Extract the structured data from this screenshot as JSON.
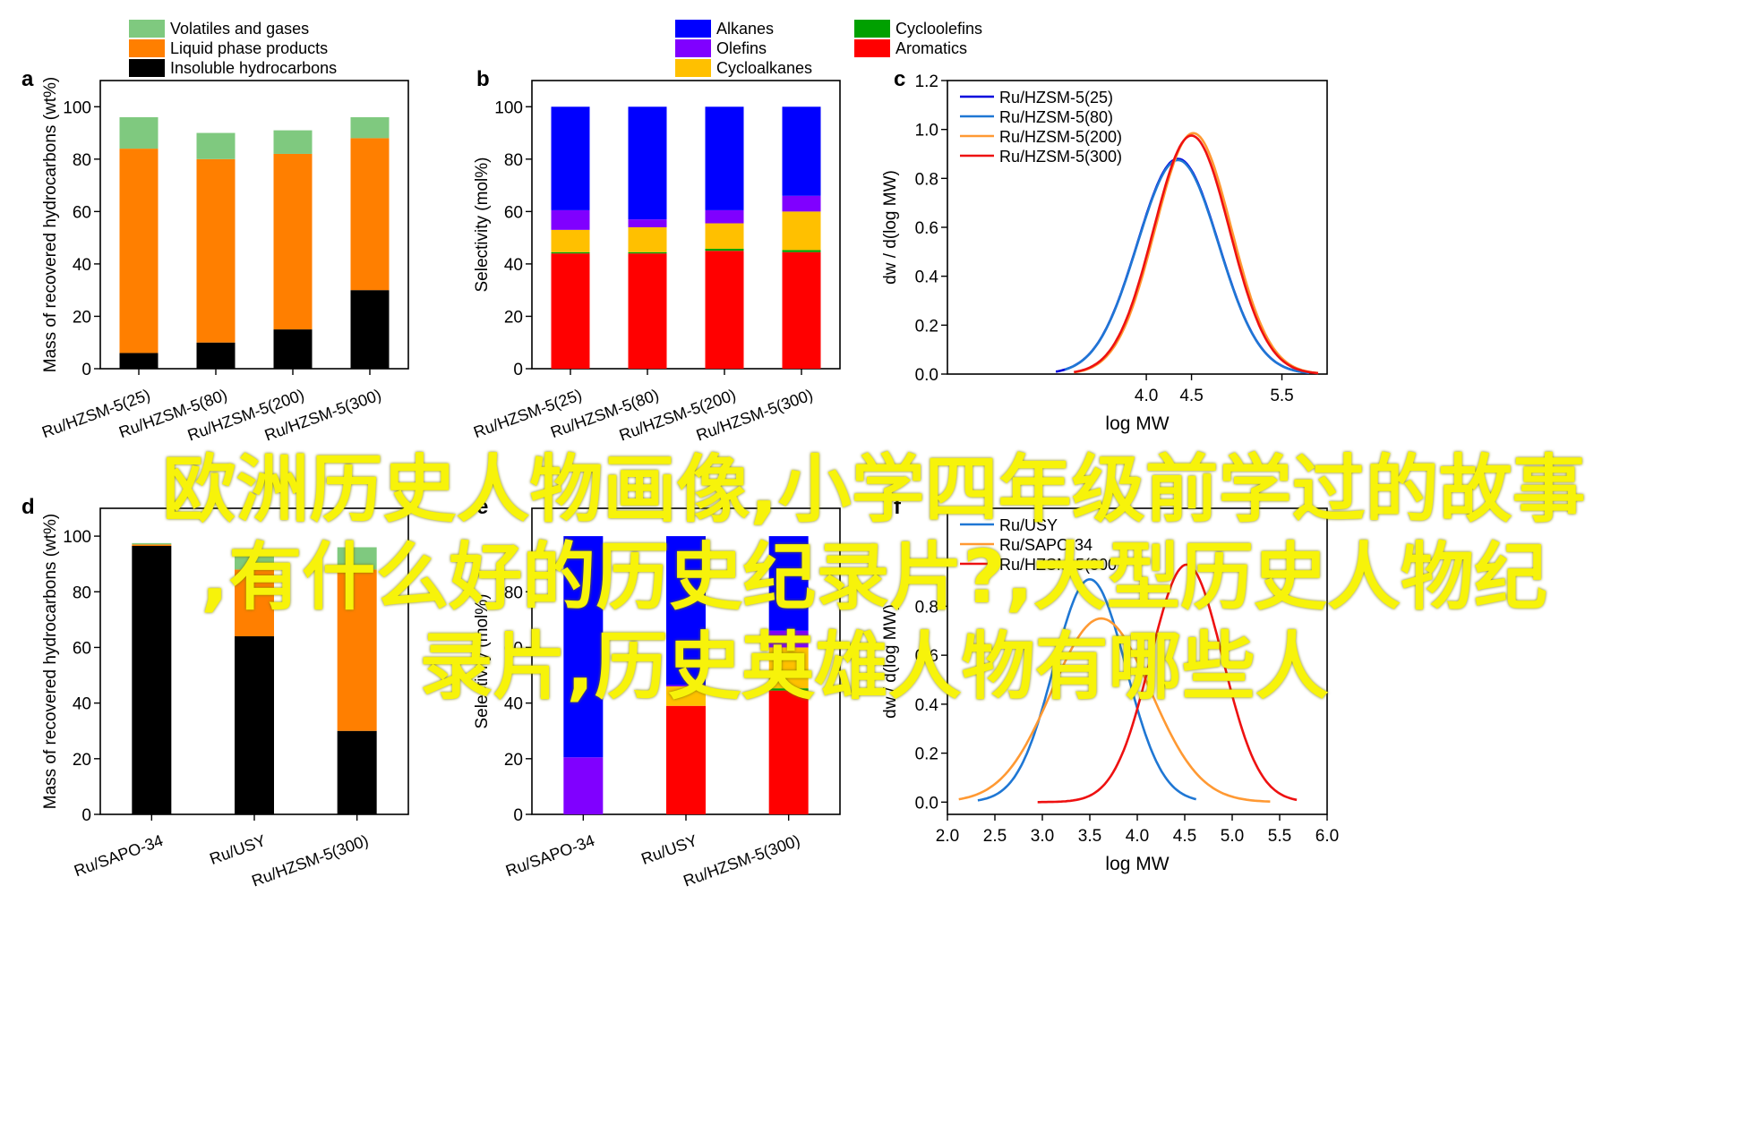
{
  "page": {
    "overlay_lines": [
      "欧洲历史人物画像,小学四年级前学过的故事",
      ",有什么好的历史纪录片?,大型历史人物纪",
      "录片,历史英雄人物有哪些人"
    ],
    "overlay_color": "#f7f30a"
  },
  "chart_data": [
    {
      "panel": "a",
      "type": "bar",
      "stacked": true,
      "categories": [
        "Ru/HZSM-5(25)",
        "Ru/HZSM-5(80)",
        "Ru/HZSM-5(200)",
        "Ru/HZSM-5(300)"
      ],
      "series": [
        {
          "name": "Insoluble hydrocarbons",
          "color": "#000000",
          "values": [
            6,
            10,
            15,
            30
          ]
        },
        {
          "name": "Liquid phase products",
          "color": "#ff7f00",
          "values": [
            78,
            70,
            67,
            58
          ]
        },
        {
          "name": "Volatiles and gases",
          "color": "#7fc97f",
          "values": [
            12,
            10,
            9,
            8
          ]
        }
      ],
      "ylabel": "Mass of recovered hydrocarbons (wt%)",
      "ylim": [
        0,
        110
      ],
      "yticks": [
        0,
        20,
        40,
        60,
        80,
        100
      ],
      "legend": "top-left, outside"
    },
    {
      "panel": "b",
      "type": "bar",
      "stacked": true,
      "categories": [
        "Ru/HZSM-5(25)",
        "Ru/HZSM-5(80)",
        "Ru/HZSM-5(200)",
        "Ru/HZSM-5(300)"
      ],
      "series": [
        {
          "name": "Aromatics",
          "color": "#ff0000",
          "values": [
            44,
            44,
            45,
            44.5
          ]
        },
        {
          "name": "Cycloolefins",
          "color": "#00a000",
          "values": [
            0.5,
            0.5,
            0.8,
            0.8
          ]
        },
        {
          "name": "Cycloalkanes",
          "color": "#ffc000",
          "values": [
            8.5,
            9.5,
            9.7,
            14.7
          ]
        },
        {
          "name": "Olefins",
          "color": "#8000ff",
          "values": [
            7.5,
            3,
            5,
            6
          ]
        },
        {
          "name": "Alkanes",
          "color": "#0000ff",
          "values": [
            39.5,
            43,
            39.5,
            34
          ]
        }
      ],
      "ylabel": "Selectivity (mol%)",
      "ylim": [
        0,
        110
      ],
      "yticks": [
        0,
        20,
        40,
        60,
        80,
        100
      ],
      "legend": "top, outside, two columns"
    },
    {
      "panel": "c",
      "type": "line",
      "xlabel": "log MW",
      "ylabel": "dw / d(log MW)",
      "xlim": [
        1.8,
        6.0
      ],
      "ylim": [
        0,
        1.2
      ],
      "yticks": [
        0.0,
        0.2,
        0.4,
        0.6,
        0.8,
        1.0,
        1.2
      ],
      "xticks_visible": [
        5.5
      ],
      "xtick_labels_visible": [
        "4.0",
        "4.5",
        "5.5"
      ],
      "series": [
        {
          "name": "Ru/HZSM-5(25)",
          "color": "#0000dd",
          "peak_x": 4.35,
          "peak_y": 0.88,
          "sigma": 0.45,
          "x_range": [
            3.0,
            5.8
          ]
        },
        {
          "name": "Ru/HZSM-5(80)",
          "color": "#1f77d4",
          "peak_x": 4.35,
          "peak_y": 0.875,
          "sigma": 0.45,
          "x_range": [
            3.1,
            5.8
          ]
        },
        {
          "name": "Ru/HZSM-5(200)",
          "color": "#ff9933",
          "peak_x": 4.52,
          "peak_y": 0.985,
          "sigma": 0.42,
          "x_range": [
            3.2,
            5.9
          ]
        },
        {
          "name": "Ru/HZSM-5(300)",
          "color": "#ee1111",
          "peak_x": 4.5,
          "peak_y": 0.975,
          "sigma": 0.42,
          "x_range": [
            3.2,
            5.9
          ]
        }
      ],
      "legend": "top-left"
    },
    {
      "panel": "d",
      "type": "bar",
      "stacked": true,
      "categories": [
        "Ru/SAPO-34",
        "Ru/USY",
        "Ru/HZSM-5(300)"
      ],
      "series": [
        {
          "name": "Insoluble hydrocarbons",
          "color": "#000000",
          "values": [
            96.5,
            64,
            30
          ]
        },
        {
          "name": "Liquid phase products",
          "color": "#ff7f00",
          "values": [
            0.5,
            24,
            58
          ]
        },
        {
          "name": "Volatiles and gases",
          "color": "#7fc97f",
          "values": [
            0.5,
            6,
            8
          ]
        }
      ],
      "ylabel": "Mass of recovered hydrocarbons (wt%)",
      "ylim": [
        0,
        110
      ],
      "yticks": [
        0,
        20,
        40,
        60,
        80,
        100
      ]
    },
    {
      "panel": "e",
      "type": "bar",
      "stacked": true,
      "categories": [
        "Ru/SAPO-34",
        "Ru/USY",
        "Ru/HZSM-5(300)"
      ],
      "series": [
        {
          "name": "Aromatics",
          "color": "#ff0000",
          "values": [
            0,
            39,
            44.5
          ]
        },
        {
          "name": "Cycloolefins",
          "color": "#00a000",
          "values": [
            0,
            0,
            0.8
          ]
        },
        {
          "name": "Cycloalkanes",
          "color": "#ffc000",
          "values": [
            0,
            7,
            14.7
          ]
        },
        {
          "name": "Olefins",
          "color": "#8000ff",
          "values": [
            20.5,
            0.5,
            6
          ]
        },
        {
          "name": "Alkanes",
          "color": "#0000ff",
          "values": [
            79.5,
            53.5,
            34
          ]
        }
      ],
      "ylabel": "Selectivity (mol%)",
      "ylim": [
        0,
        110
      ],
      "yticks": [
        0,
        20,
        40,
        60,
        80
      ]
    },
    {
      "panel": "f",
      "type": "line",
      "xlabel": "log MW",
      "ylabel": "dw / d(log MW)",
      "xlim": [
        2.0,
        6.0
      ],
      "ylim": [
        -0.05,
        1.2
      ],
      "xticks": [
        2.0,
        2.5,
        3.0,
        3.5,
        4.0,
        4.5,
        5.0,
        5.5,
        6.0
      ],
      "yticks": [
        0.0,
        0.2,
        0.4,
        0.6,
        0.8
      ],
      "series": [
        {
          "name": "Ru/USY",
          "color": "#1f77d4",
          "peak_x": 3.5,
          "peak_y": 0.91,
          "sigma": 0.38,
          "x_range": [
            2.32,
            4.62
          ]
        },
        {
          "name": "Ru/SAPO-34",
          "color": "#ff9933",
          "peak_x": 3.62,
          "peak_y": 0.75,
          "sigma": 0.52,
          "x_range": [
            2.12,
            5.4
          ]
        },
        {
          "name": "Ru/HZSM-5(300)",
          "color": "#ee1111",
          "peak_x": 4.52,
          "peak_y": 0.97,
          "sigma": 0.38,
          "x_range": [
            2.95,
            5.68
          ]
        }
      ],
      "legend": "top-left"
    }
  ],
  "panel_labels": [
    "a",
    "b",
    "c",
    "d",
    "e",
    "f"
  ]
}
